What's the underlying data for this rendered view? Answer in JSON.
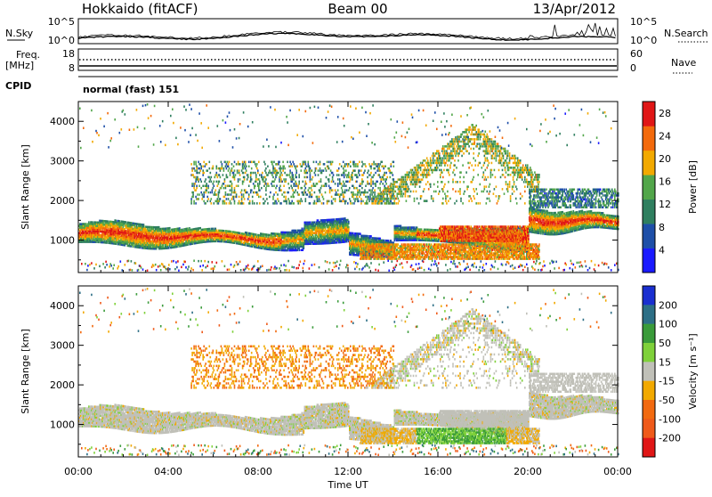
{
  "header": {
    "title": "Hokkaido (fitACF)",
    "beam": "Beam 00",
    "date": "13/Apr/2012"
  },
  "strips": {
    "nsky_label": "N.Sky",
    "nsky_ticks": [
      "10^5",
      "10^0"
    ],
    "nsearch_label": "N.Search",
    "nsearch_ticks": [
      "10^5",
      "10^0"
    ],
    "freq_label": [
      "Freq.",
      "[MHz]"
    ],
    "freq_ticks": [
      "18",
      "8"
    ],
    "nave_label": "Nave",
    "nave_ticks": [
      "60",
      "0"
    ],
    "cpid_label": "CPID",
    "cpid_text": "normal (fast) 151"
  },
  "chart_data": [
    {
      "type": "heatmap",
      "title": "",
      "xlabel": "Time UT",
      "ylabel": "Slant Range [km]",
      "x_ticks": [
        "00:00",
        "04:00",
        "08:00",
        "12:00",
        "16:00",
        "20:00",
        "00:00"
      ],
      "xlim": [
        0,
        24
      ],
      "y_ticks": [
        "1000",
        "2000",
        "3000",
        "4000"
      ],
      "ylim": [
        180,
        4500
      ],
      "colorbar": {
        "label": "Power [dB]",
        "ticks": [
          "4",
          "8",
          "12",
          "16",
          "20",
          "24",
          "28"
        ],
        "range": [
          0,
          30
        ],
        "colors": [
          "#1a1aff",
          "#1e4fa8",
          "#2f7f5f",
          "#52a64a",
          "#f2a900",
          "#f36a0c",
          "#e01616"
        ]
      }
    },
    {
      "type": "heatmap",
      "title": "",
      "xlabel": "Time UT",
      "ylabel": "Slant Range [km]",
      "x_ticks": [
        "00:00",
        "04:00",
        "08:00",
        "12:00",
        "16:00",
        "20:00",
        "00:00"
      ],
      "xlim": [
        0,
        24
      ],
      "y_ticks": [
        "1000",
        "2000",
        "3000",
        "4000"
      ],
      "ylim": [
        180,
        4500
      ],
      "colorbar": {
        "label": "Velocity [m s⁻¹]",
        "ticks": [
          "200",
          "100",
          "50",
          "15",
          "-15",
          "-50",
          "-100",
          "-200"
        ],
        "colors": [
          "#1a2fd0",
          "#2d6f86",
          "#3a9b3a",
          "#7fd13a",
          "#c0c0b8",
          "#f2a900",
          "#f26a10",
          "#ef5a1a",
          "#e01616"
        ]
      }
    }
  ]
}
